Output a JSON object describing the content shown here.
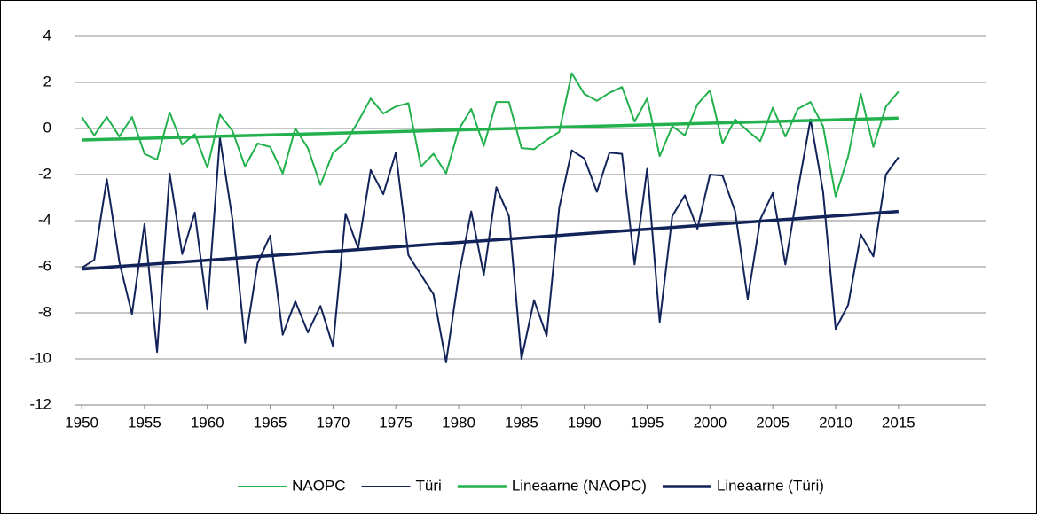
{
  "chart_data": {
    "type": "line",
    "x": [
      1950,
      1951,
      1952,
      1953,
      1954,
      1955,
      1956,
      1957,
      1958,
      1959,
      1960,
      1961,
      1962,
      1963,
      1964,
      1965,
      1966,
      1967,
      1968,
      1969,
      1970,
      1971,
      1972,
      1973,
      1974,
      1975,
      1976,
      1977,
      1978,
      1979,
      1980,
      1981,
      1982,
      1983,
      1984,
      1985,
      1986,
      1987,
      1988,
      1989,
      1990,
      1991,
      1992,
      1993,
      1994,
      1995,
      1996,
      1997,
      1998,
      1999,
      2000,
      2001,
      2002,
      2003,
      2004,
      2005,
      2006,
      2007,
      2008,
      2009,
      2010,
      2011,
      2012,
      2013,
      2014,
      2015
    ],
    "series": [
      {
        "name": "NAOPC",
        "color": "#22b14c",
        "width": 2,
        "values": [
          0.5,
          -0.3,
          0.5,
          -0.35,
          0.5,
          -1.1,
          -1.35,
          0.7,
          -0.7,
          -0.25,
          -1.7,
          0.6,
          -0.1,
          -1.65,
          -0.65,
          -0.8,
          -1.95,
          0.0,
          -0.85,
          -2.45,
          -1.05,
          -0.6,
          0.3,
          1.3,
          0.65,
          0.95,
          1.1,
          -1.65,
          -1.1,
          -1.95,
          -0.05,
          0.85,
          -0.75,
          1.15,
          1.15,
          -0.85,
          -0.9,
          -0.5,
          -0.15,
          2.4,
          1.5,
          1.2,
          1.55,
          1.8,
          0.3,
          1.3,
          -1.2,
          0.1,
          -0.3,
          1.05,
          1.65,
          -0.65,
          0.4,
          -0.1,
          -0.55,
          0.9,
          -0.35,
          0.85,
          1.15,
          0.1,
          -2.95,
          -1.2,
          1.5,
          -0.8,
          0.95,
          1.6
        ]
      },
      {
        "name": "Türi",
        "color": "#12235a",
        "width": 2,
        "values": [
          -6.05,
          -5.7,
          -2.2,
          -5.8,
          -8.05,
          -4.15,
          -9.7,
          -1.95,
          -5.45,
          -3.65,
          -7.85,
          -0.4,
          -3.95,
          -9.3,
          -5.85,
          -4.65,
          -8.95,
          -7.5,
          -8.85,
          -7.7,
          -9.45,
          -3.7,
          -5.2,
          -1.8,
          -2.85,
          -1.05,
          -5.5,
          -6.35,
          -7.2,
          -10.15,
          -6.4,
          -3.6,
          -6.35,
          -2.55,
          -3.8,
          -10.0,
          -7.45,
          -9.0,
          -3.45,
          -0.95,
          -1.3,
          -2.75,
          -1.05,
          -1.1,
          -5.9,
          -1.75,
          -8.4,
          -3.8,
          -2.9,
          -4.35,
          -2.0,
          -2.05,
          -3.6,
          -7.4,
          -3.95,
          -2.8,
          -5.9,
          -2.65,
          0.4,
          -2.75,
          -8.7,
          -7.65,
          -4.6,
          -5.55,
          -2.0,
          -1.25
        ]
      },
      {
        "name": "Lineaarne (NAOPC)",
        "color": "#22b14c",
        "width": 3.5,
        "x": [
          1950,
          2015
        ],
        "values": [
          -0.5,
          0.45
        ]
      },
      {
        "name": "Lineaarne (Türi)",
        "color": "#12235a",
        "width": 3.5,
        "x": [
          1950,
          2015
        ],
        "values": [
          -6.1,
          -3.6
        ]
      }
    ],
    "xlim": [
      1949.5,
      2022
    ],
    "xticks": [
      1950,
      1955,
      1960,
      1965,
      1970,
      1975,
      1980,
      1985,
      1990,
      1995,
      2000,
      2005,
      2010,
      2015
    ],
    "ylim": [
      -12,
      4
    ],
    "yticks": [
      -12,
      -10,
      -8,
      -6,
      -4,
      -2,
      0,
      2,
      4
    ],
    "grid": true,
    "legend": "bottom"
  }
}
